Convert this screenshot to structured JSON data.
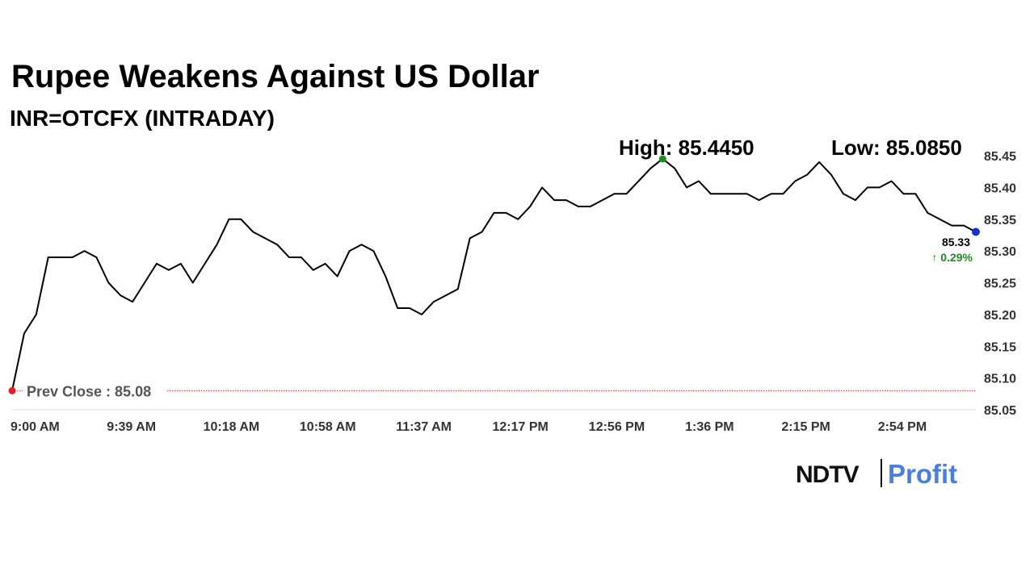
{
  "chart_data": {
    "type": "line",
    "title": "Rupee Weakens Against US Dollar",
    "subtitle": "INR=OTCFX (INTRADAY)",
    "high_label": "High: 85.4450",
    "low_label": "Low: 85.0850",
    "last_label": "85.33",
    "change_label": "↑ 0.29%",
    "prev_close_label": "Prev Close : 85.08",
    "prev_close": 85.08,
    "color": "#000000",
    "categories": [
      "9:00 AM",
      null,
      null,
      null,
      null,
      null,
      null,
      null,
      "9:39 AM",
      null,
      null,
      null,
      null,
      null,
      null,
      null,
      "10:18 AM",
      null,
      null,
      null,
      null,
      null,
      null,
      null,
      "10:58 AM",
      null,
      null,
      null,
      null,
      null,
      null,
      null,
      "11:37 AM",
      null,
      null,
      null,
      null,
      null,
      null,
      null,
      "12:17 PM",
      null,
      null,
      null,
      null,
      null,
      null,
      null,
      "12:56 PM",
      null,
      null,
      null,
      null,
      null,
      null,
      null,
      "1:36 PM",
      null,
      null,
      null,
      null,
      null,
      null,
      null,
      "2:15 PM",
      null,
      null,
      null,
      null,
      null,
      null,
      null,
      "2:54 PM",
      null,
      null,
      null,
      null,
      null,
      null,
      null,
      null
    ],
    "values": [
      85.08,
      85.17,
      85.2,
      85.29,
      85.29,
      85.29,
      85.3,
      85.29,
      85.25,
      85.23,
      85.22,
      85.25,
      85.28,
      85.27,
      85.28,
      85.25,
      85.28,
      85.31,
      85.35,
      85.35,
      85.33,
      85.32,
      85.31,
      85.29,
      85.29,
      85.27,
      85.28,
      85.26,
      85.3,
      85.31,
      85.3,
      85.26,
      85.21,
      85.21,
      85.2,
      85.22,
      85.23,
      85.24,
      85.32,
      85.33,
      85.36,
      85.36,
      85.35,
      85.37,
      85.4,
      85.38,
      85.38,
      85.37,
      85.37,
      85.38,
      85.39,
      85.39,
      85.41,
      85.43,
      85.445,
      85.43,
      85.4,
      85.41,
      85.39,
      85.39,
      85.39,
      85.39,
      85.38,
      85.39,
      85.39,
      85.41,
      85.42,
      85.44,
      85.42,
      85.39,
      85.38,
      85.4,
      85.4,
      85.41,
      85.39,
      85.39,
      85.36,
      85.35,
      85.34,
      85.34,
      85.33
    ],
    "ylim": [
      85.05,
      85.45
    ],
    "yticks": [
      85.05,
      {
        "value": 85.1,
        "label": "85.10"
      },
      85.15,
      {
        "value": 85.2,
        "label": "85.20"
      },
      85.25,
      {
        "value": 85.3,
        "label": "85.30"
      },
      85.35,
      {
        "value": 85.4,
        "label": "85.40"
      },
      85.45
    ]
  },
  "logo": {
    "brand": "NDTV",
    "product": "Profit"
  }
}
